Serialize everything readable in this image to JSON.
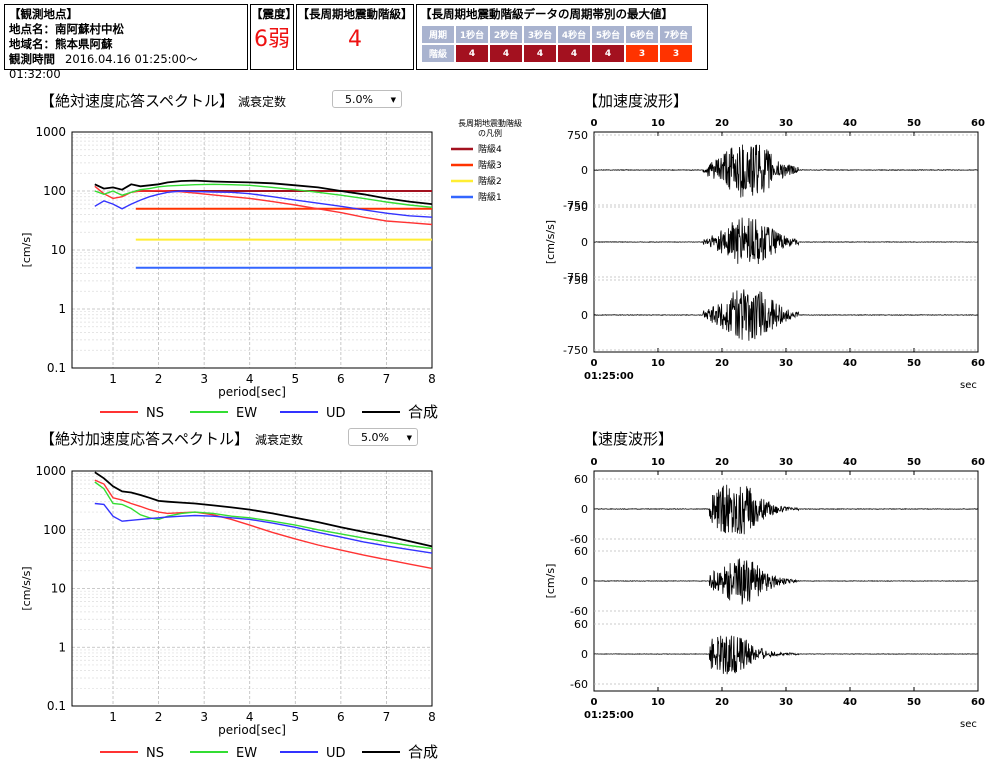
{
  "station": {
    "header": "【観測地点】",
    "point_label": "地点名：南阿蘇村中松",
    "region_label": "地域名：熊本県阿蘇",
    "time_label": "観測時間",
    "time_value": "2016.04.16 01:25:00～01:32:00"
  },
  "intensity": {
    "header": "【震度】",
    "value": "6弱"
  },
  "long_period": {
    "header": "【長周期地震動階級】",
    "value": "4"
  },
  "max_table": {
    "header": "【長周期地震動階級データの周期帯別の最大値】",
    "row_labels": [
      "周期",
      "階級"
    ],
    "periods": [
      "1秒台",
      "2秒台",
      "3秒台",
      "4秒台",
      "5秒台",
      "6秒台",
      "7秒台"
    ],
    "levels": [
      "4",
      "4",
      "4",
      "4",
      "4",
      "3",
      "3"
    ]
  },
  "velocity_section": {
    "title": "【絶対速度応答スペクトル】",
    "damping_label": "減衰定数",
    "damping_value": "5.0%"
  },
  "accel_section": {
    "title": "【絶対加速度応答スペクトル】",
    "damping_label": "減衰定数",
    "damping_value": "5.0%"
  },
  "accel_wave_title": "【加速度波形】",
  "velocity_wave_title": "【速度波形】",
  "colors": {
    "NS": "#ff3333",
    "EW": "#33dd33",
    "UD": "#3333ff",
    "合成": "#000000",
    "level4": "#a3111f",
    "level3": "#ff3300",
    "level2": "#ffee33",
    "level1": "#3366ff"
  },
  "chart_data": [
    {
      "type": "line",
      "title": "【絶対速度応答スペクトル】",
      "xlabel": "period[sec]",
      "ylabel": "[cm/s]",
      "yscale": "log",
      "xlim": [
        0.1,
        8
      ],
      "ylim": [
        0.1,
        1000
      ],
      "xticks": [
        1,
        2,
        3,
        4,
        5,
        6,
        7,
        8
      ],
      "yticks": [
        "0.1",
        "1",
        "10",
        "100",
        "1000"
      ],
      "grid": true,
      "x": [
        0.6,
        0.8,
        1.0,
        1.2,
        1.4,
        1.6,
        1.8,
        2.0,
        2.2,
        2.5,
        2.8,
        3.2,
        3.6,
        4.0,
        4.5,
        5.0,
        5.5,
        6.0,
        6.5,
        7.0,
        7.5,
        8.0
      ],
      "series": [
        {
          "name": "NS",
          "values": [
            120,
            90,
            75,
            80,
            95,
            100,
            100,
            102,
            100,
            97,
            92,
            86,
            80,
            75,
            66,
            58,
            50,
            43,
            36,
            31,
            29,
            27
          ]
        },
        {
          "name": "EW",
          "values": [
            100,
            88,
            100,
            85,
            95,
            105,
            110,
            118,
            122,
            125,
            128,
            130,
            128,
            125,
            115,
            105,
            95,
            85,
            75,
            65,
            58,
            53
          ]
        },
        {
          "name": "UD",
          "values": [
            55,
            68,
            60,
            50,
            60,
            70,
            80,
            88,
            95,
            100,
            98,
            96,
            95,
            90,
            80,
            70,
            62,
            55,
            48,
            42,
            38,
            36
          ]
        },
        {
          "name": "合成",
          "values": [
            130,
            110,
            115,
            105,
            130,
            120,
            125,
            130,
            140,
            148,
            150,
            145,
            142,
            140,
            135,
            125,
            115,
            100,
            88,
            75,
            66,
            60
          ]
        }
      ],
      "level_lines": [
        {
          "name": "階級4",
          "value": 100,
          "from": 1.5,
          "to": 8
        },
        {
          "name": "階級3",
          "value": 50,
          "from": 1.5,
          "to": 8
        },
        {
          "name": "階級2",
          "value": 15,
          "from": 1.5,
          "to": 8
        },
        {
          "name": "階級1",
          "value": 5,
          "from": 1.5,
          "to": 8
        }
      ],
      "legend_title": [
        "長周期地震動階級",
        "の凡例"
      ],
      "legend": [
        "NS",
        "EW",
        "UD",
        "合成"
      ],
      "legend_placement": "bottom"
    },
    {
      "type": "line",
      "title": "【絶対加速度応答スペクトル】",
      "xlabel": "period[sec]",
      "ylabel": "[cm/s/s]",
      "yscale": "log",
      "xlim": [
        0.1,
        8
      ],
      "ylim": [
        0.1,
        1000
      ],
      "xticks": [
        1,
        2,
        3,
        4,
        5,
        6,
        7,
        8
      ],
      "yticks": [
        "0.1",
        "1",
        "10",
        "100",
        "1000"
      ],
      "grid": true,
      "x": [
        0.6,
        0.8,
        1.0,
        1.2,
        1.4,
        1.6,
        1.8,
        2.0,
        2.2,
        2.5,
        2.8,
        3.2,
        3.6,
        4.0,
        4.5,
        5.0,
        5.5,
        6.0,
        6.5,
        7.0,
        7.5,
        8.0
      ],
      "series": [
        {
          "name": "NS",
          "values": [
            700,
            600,
            350,
            320,
            280,
            250,
            220,
            200,
            190,
            195,
            200,
            180,
            150,
            120,
            90,
            70,
            55,
            45,
            37,
            31,
            26,
            22
          ]
        },
        {
          "name": "EW",
          "values": [
            650,
            500,
            280,
            270,
            230,
            180,
            160,
            150,
            170,
            190,
            200,
            190,
            170,
            160,
            140,
            120,
            100,
            85,
            72,
            62,
            54,
            48
          ]
        },
        {
          "name": "UD",
          "values": [
            280,
            270,
            170,
            140,
            145,
            150,
            155,
            160,
            165,
            170,
            175,
            170,
            160,
            150,
            130,
            110,
            90,
            75,
            62,
            53,
            46,
            40
          ]
        },
        {
          "name": "合成",
          "values": [
            950,
            750,
            550,
            450,
            430,
            390,
            350,
            310,
            300,
            290,
            280,
            260,
            240,
            220,
            190,
            160,
            135,
            110,
            92,
            78,
            64,
            52
          ]
        }
      ],
      "legend": [
        "NS",
        "EW",
        "UD",
        "合成"
      ],
      "legend_placement": "bottom"
    },
    {
      "type": "line",
      "title": "【加速度波形】",
      "xlabel": "sec",
      "ylabel": "[cm/s/s]",
      "xlim": [
        0,
        60
      ],
      "xticks": [
        0,
        10,
        20,
        30,
        40,
        50,
        60
      ],
      "start_time": "01:25:00",
      "traces": [
        {
          "yticks": [
            "750",
            "0",
            "-750"
          ],
          "ylim": [
            -750,
            750
          ],
          "burst_start": 17,
          "burst_end": 32,
          "peak_time": 24,
          "peak_amplitude": 620
        },
        {
          "yticks": [
            "750",
            "0",
            "-750"
          ],
          "ylim": [
            -750,
            750
          ],
          "burst_start": 17,
          "burst_end": 32,
          "peak_time": 24,
          "peak_amplitude": 520
        },
        {
          "yticks": [
            "750",
            "0",
            "-750"
          ],
          "ylim": [
            -750,
            750
          ],
          "burst_start": 17,
          "burst_end": 32,
          "peak_time": 24,
          "peak_amplitude": 580
        }
      ]
    },
    {
      "type": "line",
      "title": "【速度波形】",
      "xlabel": "sec",
      "ylabel": "[cm/s]",
      "xlim": [
        0,
        60
      ],
      "xticks": [
        0,
        10,
        20,
        30,
        40,
        50,
        60
      ],
      "start_time": "01:25:00",
      "traces": [
        {
          "yticks": [
            "60",
            "0",
            "-60"
          ],
          "ylim": [
            -60,
            60
          ],
          "burst_start": 18,
          "burst_end": 32,
          "peak_time": 22,
          "peak_amplitude": 55
        },
        {
          "yticks": [
            "60",
            "0",
            "-60"
          ],
          "ylim": [
            -60,
            60
          ],
          "burst_start": 18,
          "burst_end": 32,
          "peak_time": 23,
          "peak_amplitude": 45
        },
        {
          "yticks": [
            "60",
            "0",
            "-60"
          ],
          "ylim": [
            -60,
            60
          ],
          "burst_start": 18,
          "burst_end": 32,
          "peak_time": 21,
          "peak_amplitude": 40
        }
      ]
    }
  ]
}
